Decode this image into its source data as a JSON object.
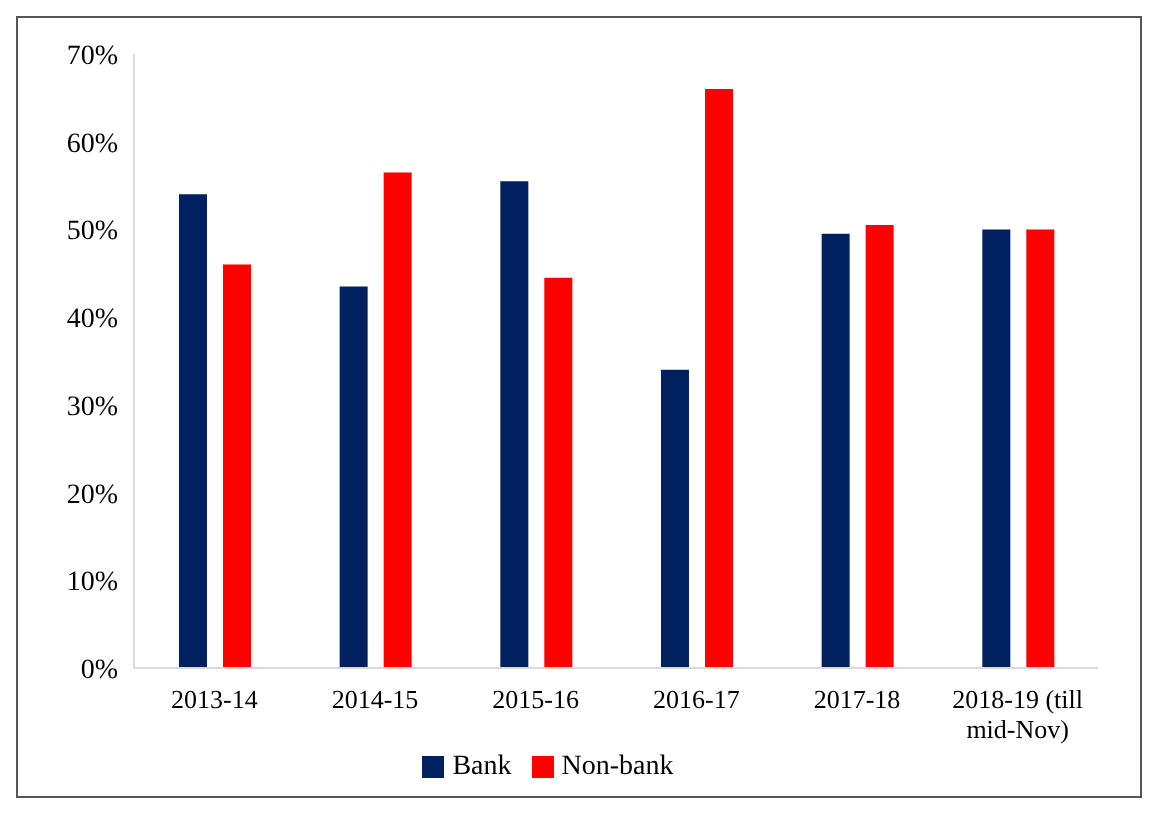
{
  "chart_data": {
    "type": "bar",
    "categories": [
      "2013-14",
      "2014-15",
      "2015-16",
      "2016-17",
      "2017-18",
      "2018-19 (till mid-Nov)"
    ],
    "series": [
      {
        "name": "Bank",
        "color": "#002060",
        "values": [
          54,
          43.5,
          55.5,
          34,
          49.5,
          50
        ]
      },
      {
        "name": "Non-bank",
        "color": "#ff0000",
        "values": [
          46,
          56.5,
          44.5,
          66,
          50.5,
          50
        ]
      }
    ],
    "ylim": [
      0,
      70
    ],
    "yticks": [
      {
        "value": 0,
        "label": "0%"
      },
      {
        "value": 10,
        "label": "10%"
      },
      {
        "value": 20,
        "label": "20%"
      },
      {
        "value": 30,
        "label": "30%"
      },
      {
        "value": 40,
        "label": "40%"
      },
      {
        "value": 50,
        "label": "50%"
      },
      {
        "value": 60,
        "label": "60%"
      },
      {
        "value": 70,
        "label": "70%"
      }
    ],
    "grid": false,
    "legend": "bottom"
  }
}
